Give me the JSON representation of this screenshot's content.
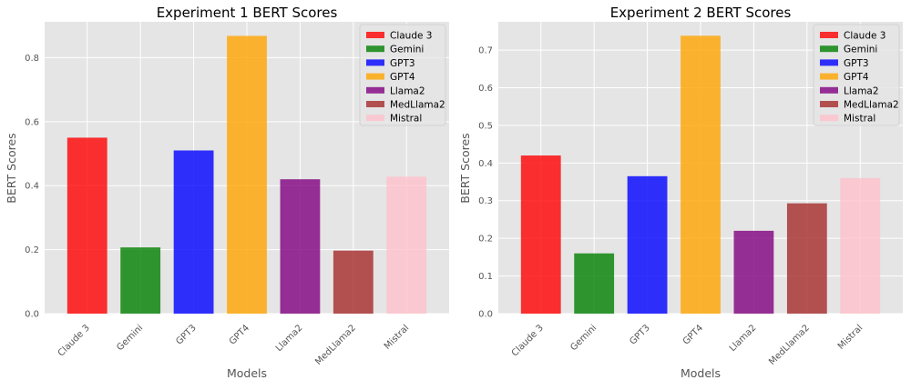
{
  "figure": {
    "background": "#ffffff",
    "panel_background": "#e5e5e5",
    "grid_color": "#ffffff"
  },
  "chart_data": [
    {
      "type": "bar",
      "title": "Experiment 1 BERT Scores",
      "xlabel": "Models",
      "ylabel": "BERT Scores",
      "categories": [
        "Claude 3",
        "Gemini",
        "GPT3",
        "GPT4",
        "Llama2",
        "MedLlama2",
        "Mistral"
      ],
      "values": [
        0.55,
        0.207,
        0.51,
        0.868,
        0.42,
        0.197,
        0.428
      ],
      "colors": [
        "#ff0000",
        "#008000",
        "#0000ff",
        "#ffa500",
        "#800080",
        "#a52a2a",
        "#ffc0cb"
      ],
      "ylim": [
        0,
        0.912
      ],
      "yticks": [
        0.0,
        0.2,
        0.4,
        0.6,
        0.8
      ],
      "ytick_labels": [
        "0.0",
        "0.2",
        "0.4",
        "0.6",
        "0.8"
      ],
      "legend": [
        "Claude 3",
        "Gemini",
        "GPT3",
        "GPT4",
        "Llama2",
        "MedLlama2",
        "Mistral"
      ],
      "legend_position": "top-right",
      "grid": true
    },
    {
      "type": "bar",
      "title": "Experiment 2 BERT Scores",
      "xlabel": "Models",
      "ylabel": "BERT Scores",
      "categories": [
        "Claude 3",
        "Gemini",
        "GPT3",
        "GPT4",
        "Llama2",
        "MedLlama2",
        "Mistral"
      ],
      "values": [
        0.42,
        0.16,
        0.365,
        0.738,
        0.22,
        0.293,
        0.36
      ],
      "colors": [
        "#ff0000",
        "#008000",
        "#0000ff",
        "#ffa500",
        "#800080",
        "#a52a2a",
        "#ffc0cb"
      ],
      "ylim": [
        0,
        0.775
      ],
      "yticks": [
        0.0,
        0.1,
        0.2,
        0.3,
        0.4,
        0.5,
        0.6,
        0.7
      ],
      "ytick_labels": [
        "0.0",
        "0.1",
        "0.2",
        "0.3",
        "0.4",
        "0.5",
        "0.6",
        "0.7"
      ],
      "legend": [
        "Claude 3",
        "Gemini",
        "GPT3",
        "GPT4",
        "Llama2",
        "MedLlama2",
        "Mistral"
      ],
      "legend_position": "top-right",
      "grid": true
    }
  ]
}
